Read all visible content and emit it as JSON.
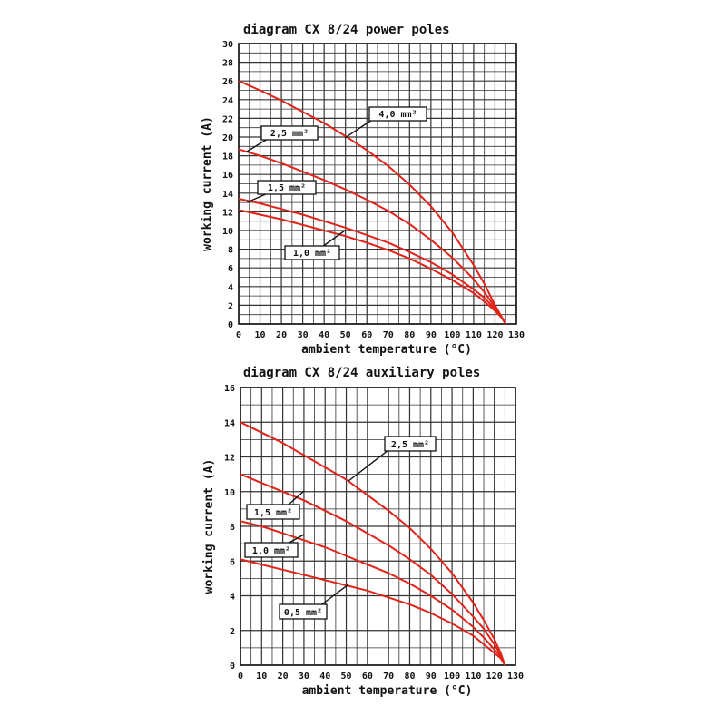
{
  "chart_data": [
    {
      "type": "line",
      "title": "diagram CX 8/24 power poles",
      "xlabel": "ambient temperature (°C)",
      "ylabel": "working current (A)",
      "xlim": [
        0,
        130
      ],
      "ylim": [
        0,
        30
      ],
      "xticks": [
        0,
        10,
        20,
        30,
        40,
        50,
        60,
        70,
        80,
        90,
        100,
        110,
        120,
        130
      ],
      "yticks": [
        0,
        2,
        4,
        6,
        8,
        10,
        12,
        14,
        16,
        18,
        20,
        22,
        24,
        26,
        28,
        30
      ],
      "grid": true,
      "line_color": "#e2231a",
      "series": [
        {
          "name": "4,0 mm²",
          "x": [
            0,
            10,
            20,
            30,
            40,
            50,
            60,
            70,
            80,
            90,
            100,
            110,
            115,
            120,
            123,
            125
          ],
          "y": [
            26,
            25,
            23.9,
            22.7,
            21.5,
            20.1,
            18.6,
            16.9,
            14.9,
            12.6,
            9.8,
            6.3,
            4.3,
            2.0,
            0.8,
            0
          ]
        },
        {
          "name": "2,5 mm²",
          "x": [
            0,
            10,
            20,
            30,
            40,
            50,
            60,
            70,
            80,
            90,
            100,
            110,
            115,
            120,
            123,
            125
          ],
          "y": [
            18.7,
            18.0,
            17.2,
            16.3,
            15.4,
            14.4,
            13.3,
            12.1,
            10.7,
            9.0,
            7.1,
            4.8,
            3.4,
            1.8,
            0.8,
            0
          ]
        },
        {
          "name": "1,5 mm²",
          "x": [
            0,
            10,
            20,
            30,
            40,
            50,
            60,
            70,
            80,
            90,
            100,
            110,
            115,
            120,
            123,
            125
          ],
          "y": [
            13.4,
            12.9,
            12.3,
            11.7,
            11.0,
            10.3,
            9.5,
            8.7,
            7.7,
            6.6,
            5.3,
            3.7,
            2.8,
            1.6,
            0.8,
            0
          ]
        },
        {
          "name": "1,0 mm²",
          "x": [
            0,
            10,
            20,
            30,
            40,
            50,
            60,
            70,
            80,
            90,
            100,
            110,
            115,
            120,
            123,
            125
          ],
          "y": [
            12.2,
            11.7,
            11.2,
            10.6,
            10.0,
            9.4,
            8.7,
            7.9,
            7.0,
            5.9,
            4.7,
            3.3,
            2.4,
            1.4,
            0.7,
            0
          ]
        }
      ]
    },
    {
      "type": "line",
      "title": "diagram CX 8/24 auxiliary poles",
      "xlabel": "ambient temperature (°C)",
      "ylabel": "working current (A)",
      "xlim": [
        0,
        130
      ],
      "ylim": [
        0,
        16
      ],
      "xticks": [
        0,
        10,
        20,
        30,
        40,
        50,
        60,
        70,
        80,
        90,
        100,
        110,
        120,
        130
      ],
      "yticks": [
        0,
        2,
        4,
        6,
        8,
        10,
        12,
        14,
        16
      ],
      "grid": true,
      "line_color": "#e2231a",
      "series": [
        {
          "name": "2,5 mm²",
          "x": [
            0,
            10,
            20,
            30,
            40,
            50,
            60,
            70,
            80,
            90,
            100,
            110,
            115,
            120,
            123,
            125
          ],
          "y": [
            14.0,
            13.4,
            12.8,
            12.1,
            11.4,
            10.7,
            9.8,
            8.9,
            7.9,
            6.7,
            5.3,
            3.6,
            2.6,
            1.5,
            0.7,
            0
          ]
        },
        {
          "name": "1,5 mm²",
          "x": [
            0,
            10,
            20,
            30,
            40,
            50,
            60,
            70,
            80,
            90,
            100,
            110,
            115,
            120,
            123,
            125
          ],
          "y": [
            11.0,
            10.5,
            10.0,
            9.5,
            8.9,
            8.3,
            7.6,
            6.9,
            6.1,
            5.2,
            4.1,
            2.8,
            2.1,
            1.2,
            0.6,
            0
          ]
        },
        {
          "name": "1,0 mm²",
          "x": [
            0,
            10,
            20,
            30,
            40,
            50,
            60,
            70,
            80,
            90,
            100,
            110,
            115,
            120,
            123,
            125
          ],
          "y": [
            8.3,
            8.0,
            7.6,
            7.2,
            6.8,
            6.3,
            5.8,
            5.3,
            4.7,
            4.0,
            3.2,
            2.2,
            1.6,
            0.9,
            0.5,
            0
          ]
        },
        {
          "name": "0,5 mm²",
          "x": [
            0,
            10,
            20,
            30,
            40,
            50,
            60,
            70,
            80,
            90,
            100,
            110,
            115,
            120,
            123,
            125
          ],
          "y": [
            6.1,
            5.8,
            5.5,
            5.2,
            4.9,
            4.6,
            4.3,
            3.9,
            3.5,
            3.0,
            2.4,
            1.7,
            1.2,
            0.7,
            0.4,
            0
          ]
        }
      ]
    }
  ]
}
